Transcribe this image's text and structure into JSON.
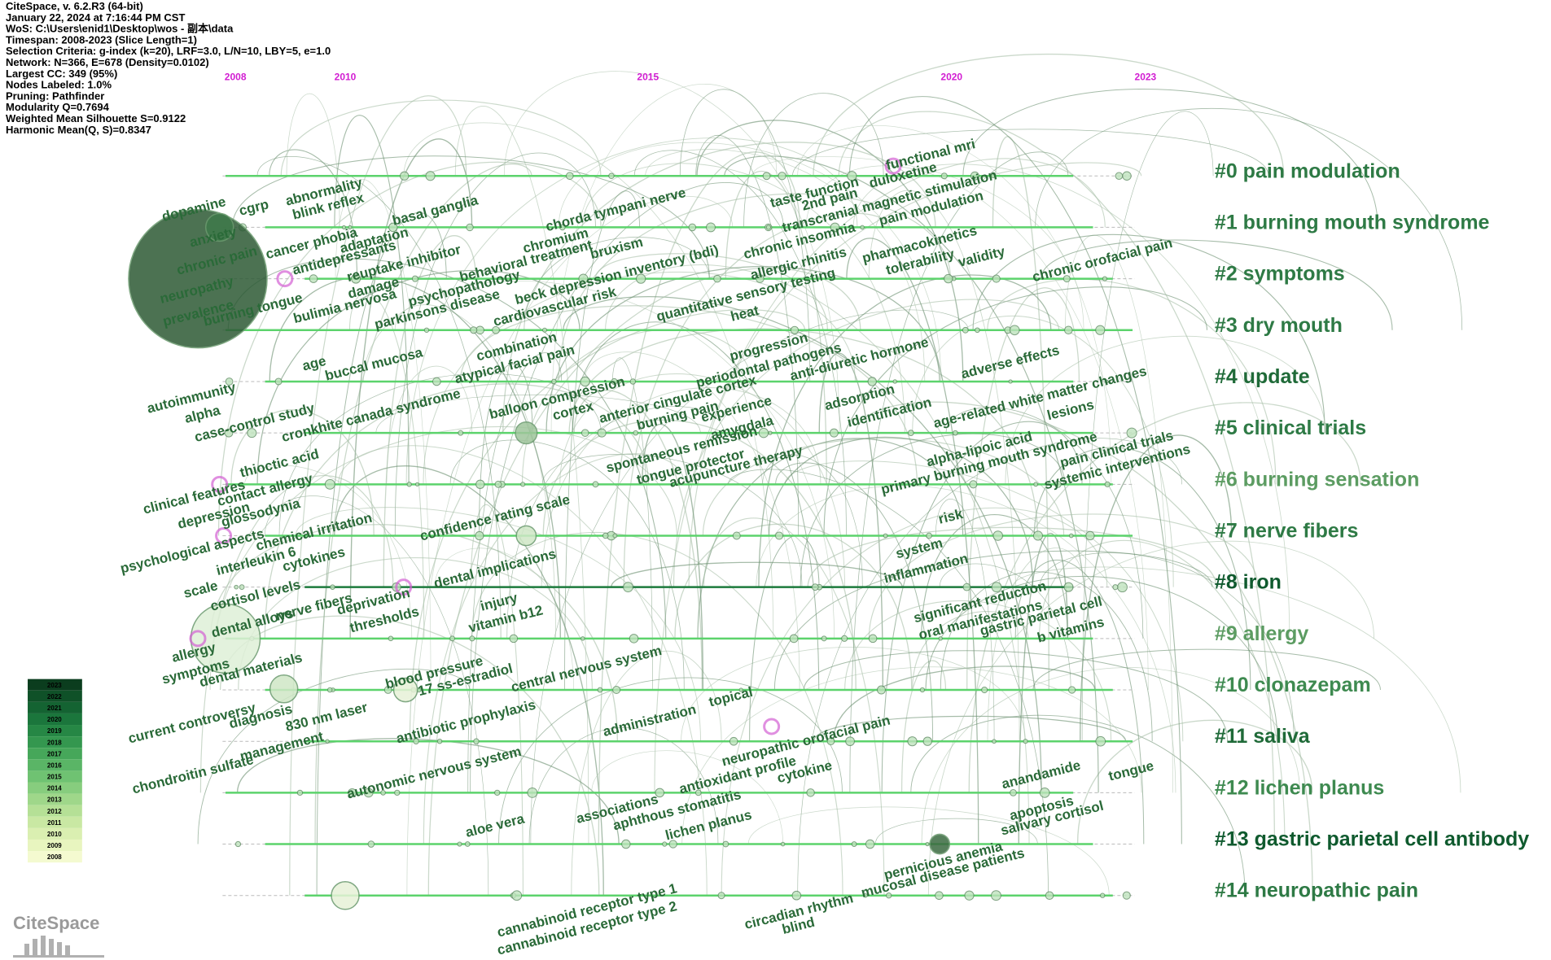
{
  "header": [
    "CiteSpace, v. 6.2.R3 (64-bit)",
    "January 22, 2024 at 7:16:44 PM CST",
    "WoS: C:\\Users\\enid1\\Desktop\\wos - 副本\\data",
    "Timespan: 2008-2023 (Slice Length=1)",
    "Selection Criteria: g-index (k=20), LRF=3.0, L/N=10, LBY=5, e=1.0",
    "Network: N=366, E=678 (Density=0.0102)",
    "Largest CC: 349 (95%)",
    "Nodes Labeled: 1.0%",
    "Pruning: Pathfinder",
    "Modularity Q=0.7694",
    "Weighted Mean Silhouette S=0.9122",
    "Harmonic Mean(Q, S)=0.8347"
  ],
  "years": [
    "2008",
    "2010",
    "2015",
    "2020",
    "2023"
  ],
  "clusters": [
    {
      "label": "#0 pain modulation",
      "color": "#2e7a45"
    },
    {
      "label": "#1 burning mouth syndrome",
      "color": "#2e7a45"
    },
    {
      "label": "#2 symptoms",
      "color": "#2e7a45"
    },
    {
      "label": "#3 dry mouth",
      "color": "#2e7a45"
    },
    {
      "label": "#4 update",
      "color": "#1f6a38"
    },
    {
      "label": "#5 clinical trials",
      "color": "#2e7a45"
    },
    {
      "label": "#6 burning sensation",
      "color": "#5c9c62"
    },
    {
      "label": "#7 nerve fibers",
      "color": "#2e7a45"
    },
    {
      "label": "#8 iron",
      "color": "#0f5a2e"
    },
    {
      "label": "#9 allergy",
      "color": "#5c9c62"
    },
    {
      "label": "#10 clonazepam",
      "color": "#3e8a50"
    },
    {
      "label": "#11 saliva",
      "color": "#1f6a38"
    },
    {
      "label": "#12 lichen planus",
      "color": "#3e8a50"
    },
    {
      "label": "#13 gastric parietal cell antibody",
      "color": "#0f5a2e"
    },
    {
      "label": "#14 neuropathic pain",
      "color": "#2e7a45"
    }
  ],
  "keywords": [
    "functional mri",
    "taste function",
    "2nd pain",
    "duloxetine",
    "transcranial magnetic stimulation",
    "pain modulation",
    "abnormality",
    "dopamine",
    "cgrp",
    "blink reflex",
    "basal ganglia",
    "chorda tympani nerve",
    "chromium",
    "anxiety",
    "cancer phobia",
    "adaptation",
    "chronic insomnia",
    "chronic pain",
    "antidepressants",
    "reuptake inhibitor",
    "bruxism",
    "behavioral treatment",
    "beck depression inventory (bdi)",
    "allergic rhinitis",
    "pharmacokinetics",
    "tolerability",
    "validity",
    "chronic orofacial pain",
    "neuropathy",
    "damage",
    "psychopathology",
    "prevalence",
    "burning tongue",
    "bulimia nervosa",
    "parkinsons disease",
    "cardiovascular risk",
    "quantitative sensory testing",
    "heat",
    "combination",
    "progression",
    "periodontal pathogens",
    "age",
    "buccal mucosa",
    "atypical facial pain",
    "anti-diuretic hormone",
    "adverse effects",
    "autoimmunity",
    "balloon compression",
    "anterior cingulate cortex",
    "adsorption",
    "age-related white matter changes",
    "alpha",
    "case-control study",
    "cronkhite canada syndrome",
    "cortex",
    "burning pain",
    "experience",
    "identification",
    "amygdala",
    "lesions",
    "spontaneous remission",
    "alpha-lipoic acid",
    "primary burning mouth syndrome",
    "pain clinical trials",
    "thioctic acid",
    "tongue protector",
    "acupuncture therapy",
    "systemic interventions",
    "clinical features",
    "contact allergy",
    "depression",
    "confidence rating scale",
    "risk",
    "glossodynia",
    "chemical irritation",
    "psychological aspects",
    "interleukin 6",
    "system",
    "cytokines",
    "inflammation",
    "dental implications",
    "scale",
    "cortisol levels",
    "deprivation",
    "significant reduction",
    "injury",
    "nerve fibers",
    "oral manifestations",
    "gastric parietal cell",
    "thresholds",
    "vitamin b12",
    "dental alloys",
    "b vitamins",
    "allergy",
    "symptoms",
    "dental materials",
    "blood pressure",
    "17 ss-estradiol",
    "central nervous system",
    "current controversy",
    "diagnosis",
    "830 nm laser",
    "antibiotic prophylaxis",
    "administration",
    "topical",
    "management",
    "neuropathic orofacial pain",
    "chondroitin sulfate",
    "autonomic nervous system",
    "antioxidant profile",
    "cytokine",
    "anandamide",
    "tongue",
    "associations",
    "aphthous stomatitis",
    "apoptosis",
    "salivary cortisol",
    "aloe vera",
    "lichen planus",
    "pernicious anemia",
    "circadian rhythm",
    "mucosal disease patients",
    "blind",
    "cannabinoid receptor type 1",
    "cannabinoid receptor type 2"
  ],
  "legend": {
    "years": [
      "2023",
      "2022",
      "2021",
      "2020",
      "2019",
      "2018",
      "2017",
      "2016",
      "2015",
      "2014",
      "2013",
      "2012",
      "2011",
      "2010",
      "2009",
      "2008"
    ],
    "colors": [
      "#0b3d1e",
      "#0f5128",
      "#146332",
      "#1b763c",
      "#268745",
      "#34974f",
      "#46a75a",
      "#5ab566",
      "#6fc272",
      "#87cd7e",
      "#9fd78a",
      "#b5e096",
      "#c9e8a3",
      "#daefb1",
      "#e8f5bf",
      "#f4fad0"
    ]
  },
  "logo": "CiteSpace"
}
